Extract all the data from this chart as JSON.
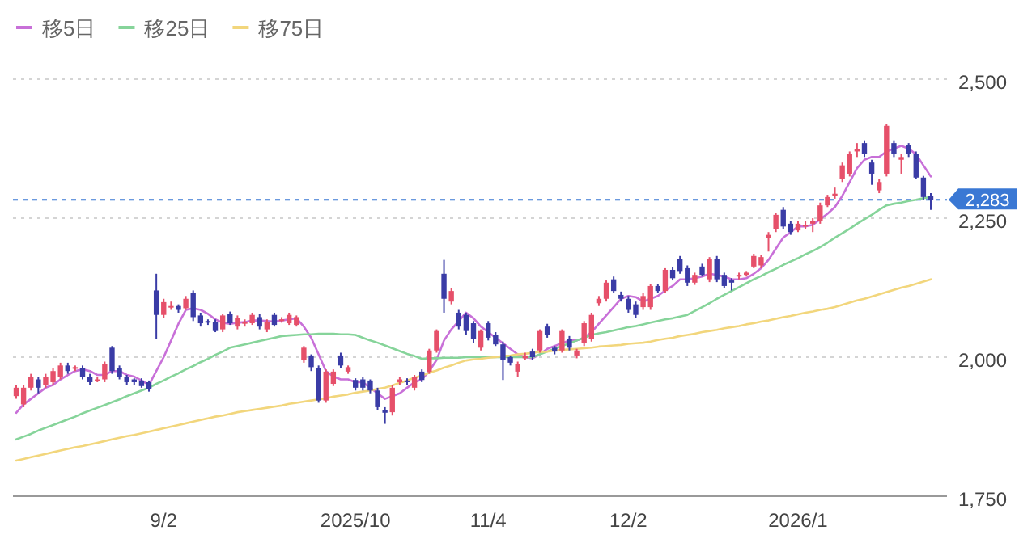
{
  "chart_data": {
    "type": "candlestick",
    "categories": [
      null,
      null,
      null,
      null,
      null,
      null,
      null,
      null,
      null,
      null,
      null,
      null,
      null,
      null,
      null,
      null,
      null,
      null,
      null,
      null,
      "9/2",
      null,
      null,
      null,
      null,
      null,
      null,
      null,
      null,
      null,
      null,
      null,
      null,
      null,
      null,
      null,
      null,
      null,
      null,
      null,
      null,
      null,
      null,
      null,
      null,
      null,
      "2025/10",
      null,
      null,
      null,
      null,
      null,
      null,
      null,
      null,
      null,
      null,
      null,
      null,
      null,
      null,
      null,
      null,
      null,
      "11/4",
      null,
      null,
      null,
      null,
      null,
      null,
      null,
      null,
      null,
      null,
      null,
      null,
      null,
      null,
      null,
      null,
      null,
      null,
      "12/2",
      null,
      null,
      null,
      null,
      null,
      null,
      null,
      null,
      null,
      null,
      null,
      null,
      null,
      null,
      null,
      null,
      null,
      null,
      null,
      null,
      null,
      null,
      "2026/1",
      null,
      null,
      null,
      null,
      null,
      null,
      null,
      null,
      null,
      null,
      null,
      null,
      null,
      null,
      null,
      null,
      null,
      null
    ],
    "ohlc": [
      [
        1930,
        1950,
        1925,
        1945
      ],
      [
        1915,
        1950,
        1910,
        1945
      ],
      [
        1945,
        1970,
        1940,
        1965
      ],
      [
        1960,
        1965,
        1935,
        1945
      ],
      [
        1950,
        1970,
        1945,
        1965
      ],
      [
        1955,
        1980,
        1950,
        1975
      ],
      [
        1965,
        1990,
        1960,
        1985
      ],
      [
        1985,
        1990,
        1970,
        1975
      ],
      [
        1980,
        1985,
        1975,
        1982
      ],
      [
        1980,
        1985,
        1960,
        1965
      ],
      [
        1965,
        1970,
        1950,
        1955
      ],
      [
        1958,
        1965,
        1955,
        1960
      ],
      [
        1960,
        1992,
        1955,
        1988
      ],
      [
        2017,
        2020,
        1970,
        1975
      ],
      [
        1980,
        1985,
        1960,
        1965
      ],
      [
        1965,
        1968,
        1950,
        1955
      ],
      [
        1960,
        1962,
        1950,
        1955
      ],
      [
        1958,
        1962,
        1945,
        1948
      ],
      [
        1955,
        1958,
        1938,
        1942
      ],
      [
        2120,
        2150,
        2032,
        2076
      ],
      [
        2076,
        2105,
        2070,
        2099
      ],
      [
        2090,
        2100,
        2085,
        2092
      ],
      [
        2092,
        2095,
        2080,
        2085
      ],
      [
        2088,
        2110,
        2085,
        2105
      ],
      [
        2115,
        2120,
        2065,
        2072
      ],
      [
        2075,
        2080,
        2055,
        2061
      ],
      [
        2065,
        2068,
        2058,
        2063
      ],
      [
        2063,
        2068,
        2045,
        2047
      ],
      [
        2050,
        2078,
        2045,
        2075
      ],
      [
        2078,
        2082,
        2058,
        2061
      ],
      [
        2055,
        2075,
        2050,
        2070
      ],
      [
        2061,
        2068,
        2055,
        2063
      ],
      [
        2061,
        2080,
        2058,
        2076
      ],
      [
        2072,
        2078,
        2050,
        2055
      ],
      [
        2050,
        2068,
        2045,
        2063
      ],
      [
        2076,
        2080,
        2055,
        2058
      ],
      [
        2065,
        2072,
        2062,
        2068
      ],
      [
        2061,
        2080,
        2058,
        2076
      ],
      [
        2058,
        2075,
        2055,
        2072
      ],
      [
        1995,
        2020,
        1990,
        2017
      ],
      [
        2003,
        2005,
        1975,
        1982
      ],
      [
        1980,
        1985,
        1918,
        1922
      ],
      [
        1922,
        1978,
        1918,
        1974
      ],
      [
        1952,
        1978,
        1948,
        1974
      ],
      [
        2003,
        2008,
        1980,
        1985
      ],
      [
        1974,
        1985,
        1970,
        1982
      ],
      [
        1959,
        1962,
        1940,
        1945
      ],
      [
        1960,
        1965,
        1940,
        1945
      ],
      [
        1958,
        1960,
        1935,
        1940
      ],
      [
        1940,
        1945,
        1905,
        1910
      ],
      [
        1905,
        1910,
        1880,
        1900
      ],
      [
        1901,
        1950,
        1895,
        1945
      ],
      [
        1955,
        1965,
        1950,
        1960
      ],
      [
        1958,
        1962,
        1950,
        1955
      ],
      [
        1945,
        1968,
        1940,
        1965
      ],
      [
        1974,
        1978,
        1955,
        1959
      ],
      [
        1974,
        2015,
        1970,
        2012
      ],
      [
        2012,
        2050,
        2008,
        2047
      ],
      [
        2150,
        2175,
        2080,
        2105
      ],
      [
        2100,
        2125,
        2095,
        2119
      ],
      [
        2080,
        2085,
        2050,
        2055
      ],
      [
        2076,
        2080,
        2040,
        2047
      ],
      [
        2061,
        2065,
        2025,
        2032
      ],
      [
        2017,
        2050,
        2012,
        2047
      ],
      [
        2061,
        2065,
        2030,
        2035
      ],
      [
        2040,
        2045,
        2020,
        2023
      ],
      [
        2023,
        2028,
        1959,
        1995
      ],
      [
        2000,
        2003,
        1985,
        1990
      ],
      [
        1974,
        1992,
        1965,
        1988
      ],
      [
        1998,
        2008,
        1995,
        2003
      ],
      [
        2010,
        2015,
        1995,
        2000
      ],
      [
        2012,
        2050,
        2008,
        2047
      ],
      [
        2055,
        2060,
        2035,
        2040
      ],
      [
        2017,
        2020,
        2005,
        2010
      ],
      [
        2012,
        2050,
        2008,
        2047
      ],
      [
        2032,
        2038,
        2012,
        2017
      ],
      [
        2003,
        2015,
        1998,
        2012
      ],
      [
        2025,
        2065,
        2020,
        2061
      ],
      [
        2032,
        2080,
        2028,
        2076
      ],
      [
        2097,
        2110,
        2092,
        2105
      ],
      [
        2105,
        2138,
        2100,
        2134
      ],
      [
        2140,
        2145,
        2115,
        2119
      ],
      [
        2112,
        2118,
        2100,
        2105
      ],
      [
        2105,
        2110,
        2080,
        2085
      ],
      [
        2095,
        2100,
        2070,
        2076
      ],
      [
        2090,
        2115,
        2085,
        2110
      ],
      [
        2090,
        2132,
        2085,
        2128
      ],
      [
        2128,
        2132,
        2115,
        2119
      ],
      [
        2119,
        2160,
        2115,
        2157
      ],
      [
        2157,
        2162,
        2138,
        2142
      ],
      [
        2177,
        2182,
        2150,
        2155
      ],
      [
        2160,
        2165,
        2128,
        2134
      ],
      [
        2134,
        2152,
        2130,
        2148
      ],
      [
        2163,
        2168,
        2145,
        2148
      ],
      [
        2140,
        2180,
        2135,
        2177
      ],
      [
        2177,
        2182,
        2135,
        2140
      ],
      [
        2148,
        2152,
        2125,
        2128
      ],
      [
        2138,
        2142,
        2120,
        2134
      ],
      [
        2145,
        2152,
        2140,
        2148
      ],
      [
        2148,
        2155,
        2145,
        2152
      ],
      [
        2163,
        2186,
        2160,
        2182
      ],
      [
        2165,
        2184,
        2160,
        2180
      ],
      [
        2215,
        2225,
        2190,
        2220
      ],
      [
        2230,
        2260,
        2225,
        2256
      ],
      [
        2265,
        2270,
        2230,
        2235
      ],
      [
        2240,
        2245,
        2220,
        2225
      ],
      [
        2228,
        2245,
        2225,
        2240
      ],
      [
        2235,
        2245,
        2230,
        2238
      ],
      [
        2240,
        2250,
        2225,
        2245
      ],
      [
        2245,
        2278,
        2240,
        2273
      ],
      [
        2273,
        2292,
        2270,
        2288
      ],
      [
        2290,
        2305,
        2285,
        2294
      ],
      [
        2320,
        2350,
        2315,
        2345
      ],
      [
        2330,
        2370,
        2325,
        2366
      ],
      [
        2370,
        2385,
        2360,
        2375
      ],
      [
        2385,
        2390,
        2360,
        2366
      ],
      [
        2350,
        2355,
        2310,
        2330
      ],
      [
        2300,
        2320,
        2295,
        2315
      ],
      [
        2330,
        2420,
        2325,
        2416
      ],
      [
        2385,
        2390,
        2360,
        2366
      ],
      [
        2355,
        2365,
        2330,
        2360
      ],
      [
        2381,
        2385,
        2360,
        2366
      ],
      [
        2366,
        2370,
        2320,
        2323
      ],
      [
        2323,
        2326,
        2283,
        2288
      ],
      [
        2290,
        2295,
        2265,
        2283
      ]
    ],
    "series": [
      {
        "name": "移5日",
        "type": "line",
        "color": "#c870d8",
        "values": [
          1900,
          1915,
          1925,
          1935,
          1945,
          1950,
          1960,
          1968,
          1975,
          1978,
          1975,
          1968,
          1968,
          1975,
          1975,
          1968,
          1965,
          1958,
          1950,
          1975,
          2000,
          2030,
          2060,
          2085,
          2088,
          2085,
          2078,
          2068,
          2062,
          2060,
          2062,
          2063,
          2066,
          2066,
          2065,
          2064,
          2066,
          2068,
          2070,
          2055,
          2035,
          2005,
          1975,
          1965,
          1960,
          1960,
          1955,
          1955,
          1945,
          1935,
          1925,
          1930,
          1935,
          1945,
          1955,
          1960,
          1975,
          1995,
          2030,
          2050,
          2065,
          2080,
          2070,
          2055,
          2045,
          2035,
          2025,
          2015,
          2005,
          2000,
          1998,
          2005,
          2015,
          2020,
          2025,
          2030,
          2030,
          2035,
          2045,
          2060,
          2075,
          2090,
          2105,
          2110,
          2108,
          2100,
          2105,
          2110,
          2120,
          2128,
          2140,
          2140,
          2142,
          2145,
          2150,
          2148,
          2145,
          2140,
          2140,
          2142,
          2150,
          2160,
          2175,
          2195,
          2215,
          2225,
          2235,
          2235,
          2238,
          2248,
          2258,
          2270,
          2290,
          2315,
          2340,
          2355,
          2360,
          2360,
          2370,
          2375,
          2380,
          2375,
          2365,
          2345,
          2325
        ]
      },
      {
        "name": "移25日",
        "type": "line",
        "color": "#86d49a",
        "values": [
          1852,
          1857,
          1862,
          1868,
          1873,
          1878,
          1883,
          1888,
          1893,
          1899,
          1904,
          1909,
          1914,
          1919,
          1924,
          1930,
          1935,
          1940,
          1945,
          1952,
          1958,
          1965,
          1971,
          1978,
          1984,
          1991,
          1997,
          2004,
          2010,
          2017,
          2020,
          2023,
          2026,
          2029,
          2032,
          2035,
          2038,
          2039,
          2040,
          2041,
          2041,
          2042,
          2042,
          2042,
          2041,
          2041,
          2040,
          2035,
          2030,
          2026,
          2021,
          2016,
          2011,
          2006,
          2002,
          1997,
          1998,
          1998,
          1999,
          1999,
          1999,
          2000,
          2000,
          2000,
          2000,
          2000,
          2000,
          2000,
          2000,
          2000,
          2000,
          2005,
          2010,
          2015,
          2020,
          2025,
          2030,
          2035,
          2040,
          2043,
          2045,
          2048,
          2051,
          2054,
          2056,
          2059,
          2062,
          2065,
          2068,
          2070,
          2073,
          2076,
          2083,
          2090,
          2097,
          2105,
          2112,
          2119,
          2126,
          2133,
          2140,
          2146,
          2153,
          2159,
          2166,
          2172,
          2178,
          2185,
          2191,
          2198,
          2206,
          2215,
          2223,
          2231,
          2240,
          2248,
          2256,
          2265,
          2273,
          2276,
          2278,
          2281,
          2283,
          2286,
          2288
        ]
      },
      {
        "name": "移75日",
        "type": "line",
        "color": "#f2d67c",
        "values": [
          1814,
          1817,
          1820,
          1823,
          1826,
          1829,
          1832,
          1835,
          1838,
          1840,
          1843,
          1846,
          1849,
          1852,
          1855,
          1858,
          1860,
          1863,
          1866,
          1869,
          1872,
          1875,
          1878,
          1881,
          1884,
          1887,
          1890,
          1893,
          1895,
          1898,
          1901,
          1903,
          1905,
          1907,
          1909,
          1911,
          1913,
          1916,
          1918,
          1920,
          1922,
          1924,
          1926,
          1929,
          1931,
          1933,
          1936,
          1938,
          1940,
          1943,
          1945,
          1949,
          1954,
          1958,
          1963,
          1967,
          1972,
          1976,
          1981,
          1985,
          1990,
          1994,
          1996,
          1997,
          1999,
          2000,
          2002,
          2003,
          2005,
          2006,
          2008,
          2009,
          2010,
          2012,
          2013,
          2014,
          2015,
          2016,
          2017,
          2019,
          2020,
          2021,
          2022,
          2024,
          2025,
          2026,
          2028,
          2031,
          2033,
          2035,
          2038,
          2040,
          2042,
          2045,
          2047,
          2049,
          2052,
          2054,
          2056,
          2059,
          2061,
          2064,
          2066,
          2069,
          2072,
          2074,
          2077,
          2080,
          2082,
          2085,
          2087,
          2090,
          2094,
          2098,
          2102,
          2105,
          2109,
          2113,
          2117,
          2121,
          2125,
          2128,
          2132,
          2136,
          2140
        ]
      }
    ],
    "ylim": [
      1750,
      2500
    ],
    "yticks": [
      {
        "value": 1750,
        "label": "1,750"
      },
      {
        "value": 2000,
        "label": "2,000"
      },
      {
        "value": 2250,
        "label": "2,250"
      },
      {
        "value": 2500,
        "label": "2,500"
      }
    ],
    "grid": "y",
    "legend": "top left",
    "ref_lines": [
      {
        "axis": "y",
        "value": 2283,
        "label": "2,283",
        "color": "#3a78d4",
        "line_style": "dashed"
      }
    ]
  }
}
